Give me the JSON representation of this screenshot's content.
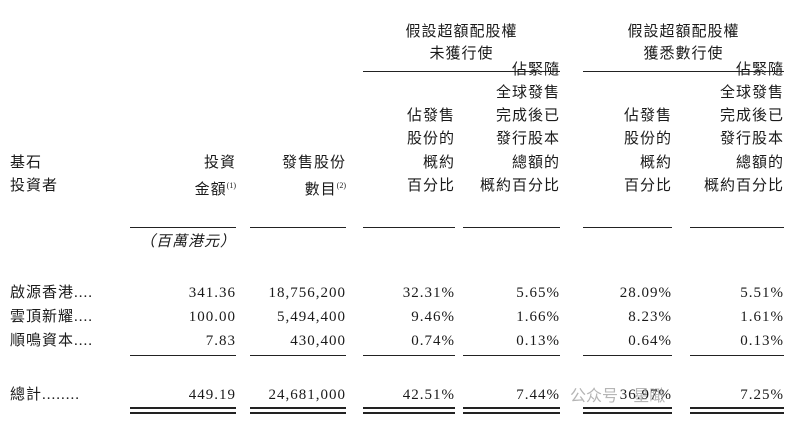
{
  "table": {
    "groups": [
      {
        "lines": [
          "假設超額配股權",
          "未獲行使"
        ]
      },
      {
        "lines": [
          "假設超額配股權",
          "獲悉數行使"
        ]
      }
    ],
    "columns": [
      {
        "lines": [
          "基石",
          "投資者"
        ]
      },
      {
        "lines": [
          "投資",
          "金額"
        ],
        "note": "(1)"
      },
      {
        "lines": [
          "發售股份",
          "數目"
        ],
        "note": "(2)"
      },
      {
        "lines": [
          "佔發售",
          "股份的",
          "概約",
          "百分比"
        ]
      },
      {
        "lines": [
          "佔緊隨",
          "全球發售",
          "完成後已",
          "發行股本",
          "總額的",
          "概約百分比"
        ]
      },
      {
        "lines": [
          "佔發售",
          "股份的",
          "概約",
          "百分比"
        ]
      },
      {
        "lines": [
          "佔緊隨",
          "全球發售",
          "完成後已",
          "發行股本",
          "總額的",
          "概約百分比"
        ]
      }
    ],
    "unit": "（百萬港元）",
    "rows": [
      [
        "啟源香港....",
        "341.36",
        "18,756,200",
        "32.31%",
        "5.65%",
        "28.09%",
        "5.51%"
      ],
      [
        "雲頂新耀....",
        "100.00",
        "5,494,400",
        "9.46%",
        "1.66%",
        "8.23%",
        "1.61%"
      ],
      [
        "順鳴資本....",
        "7.83",
        "430,400",
        "0.74%",
        "0.13%",
        "0.64%",
        "0.13%"
      ]
    ],
    "total": [
      "總計........",
      "449.19",
      "24,681,000",
      "42.51%",
      "7.44%",
      "36.97%",
      "7.25%"
    ],
    "watermark": "公众号 · 星瞰"
  }
}
